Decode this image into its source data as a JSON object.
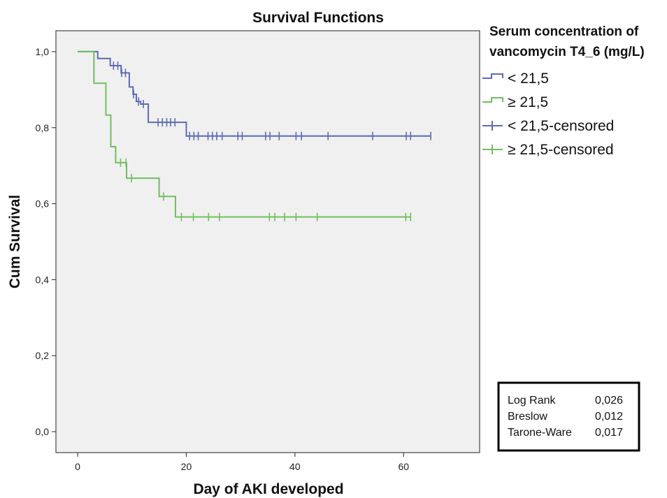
{
  "chart_data": {
    "type": "line",
    "title": "Survival Functions",
    "xlabel": "Day of AKI developed",
    "ylabel": "Cum Survival",
    "xlim": [
      -4,
      74
    ],
    "ylim": [
      -0.055,
      1.055
    ],
    "x_ticks": [
      0,
      20,
      40,
      60
    ],
    "x_tick_labels": [
      "0",
      "20",
      "40",
      "60"
    ],
    "y_ticks": [
      0.0,
      0.2,
      0.4,
      0.6,
      0.8,
      1.0
    ],
    "y_tick_labels": [
      "0,0",
      "0,2",
      "0,4",
      "0,6",
      "0,8",
      "1,0"
    ],
    "legend": {
      "title_lines": [
        "Serum concentration of",
        "vancomycin T4_6 (mg/L)"
      ],
      "entries": [
        {
          "label": "< 21,5",
          "kind": "line",
          "color": "#5b6bb5"
        },
        {
          "label": "≥ 21,5",
          "kind": "line",
          "color": "#6fbf5e"
        },
        {
          "label": "< 21,5-censored",
          "kind": "censor",
          "color": "#5b6bb5"
        },
        {
          "label": "≥ 21,5-censored",
          "kind": "censor",
          "color": "#6fbf5e"
        }
      ],
      "position": "right"
    },
    "stats": [
      {
        "label": "Log Rank",
        "value": "0,026"
      },
      {
        "label": "Breslow",
        "value": "0,012"
      },
      {
        "label": "Tarone-Ware",
        "value": "0,017"
      }
    ],
    "series": [
      {
        "name": "< 21,5",
        "color": "#5b6bb5",
        "steps": [
          [
            0,
            1.0
          ],
          [
            3.7,
            0.982
          ],
          [
            6,
            0.963
          ],
          [
            8,
            0.944
          ],
          [
            9.5,
            0.907
          ],
          [
            10.2,
            0.888
          ],
          [
            10.8,
            0.869
          ],
          [
            11.6,
            0.862
          ],
          [
            13,
            0.814
          ],
          [
            20,
            0.778
          ],
          [
            65,
            0.778
          ]
        ],
        "censored": [
          [
            6.6,
            0.963
          ],
          [
            7.4,
            0.963
          ],
          [
            8.1,
            0.944
          ],
          [
            8.8,
            0.944
          ],
          [
            10.3,
            0.888
          ],
          [
            11.2,
            0.869
          ],
          [
            12.1,
            0.862
          ],
          [
            14.8,
            0.814
          ],
          [
            15.6,
            0.814
          ],
          [
            16.4,
            0.814
          ],
          [
            17.1,
            0.814
          ],
          [
            17.9,
            0.814
          ],
          [
            20.6,
            0.778
          ],
          [
            21.4,
            0.778
          ],
          [
            22.2,
            0.778
          ],
          [
            24,
            0.778
          ],
          [
            24.8,
            0.778
          ],
          [
            25.6,
            0.778
          ],
          [
            26.6,
            0.778
          ],
          [
            29.5,
            0.778
          ],
          [
            30.3,
            0.778
          ],
          [
            34.6,
            0.778
          ],
          [
            35.4,
            0.778
          ],
          [
            37.1,
            0.778
          ],
          [
            40.2,
            0.778
          ],
          [
            41.2,
            0.778
          ],
          [
            46.1,
            0.778
          ],
          [
            54.3,
            0.778
          ],
          [
            60.5,
            0.778
          ],
          [
            61.3,
            0.778
          ],
          [
            65,
            0.778
          ]
        ]
      },
      {
        "name": "≥ 21,5",
        "color": "#6fbf5e",
        "steps": [
          [
            0,
            1.0
          ],
          [
            3,
            0.917
          ],
          [
            5.2,
            0.833
          ],
          [
            6.1,
            0.75
          ],
          [
            7,
            0.708
          ],
          [
            9,
            0.667
          ],
          [
            15,
            0.619
          ],
          [
            18,
            0.565
          ],
          [
            61.3,
            0.565
          ]
        ],
        "censored": [
          [
            7.9,
            0.708
          ],
          [
            8.9,
            0.708
          ],
          [
            9.9,
            0.667
          ],
          [
            15.8,
            0.619
          ],
          [
            19.1,
            0.565
          ],
          [
            21.3,
            0.565
          ],
          [
            24.1,
            0.565
          ],
          [
            26.1,
            0.565
          ],
          [
            35.3,
            0.565
          ],
          [
            36.3,
            0.565
          ],
          [
            38.1,
            0.565
          ],
          [
            40.2,
            0.565
          ],
          [
            44.1,
            0.565
          ],
          [
            60.4,
            0.565
          ],
          [
            61.3,
            0.565
          ]
        ]
      }
    ]
  }
}
